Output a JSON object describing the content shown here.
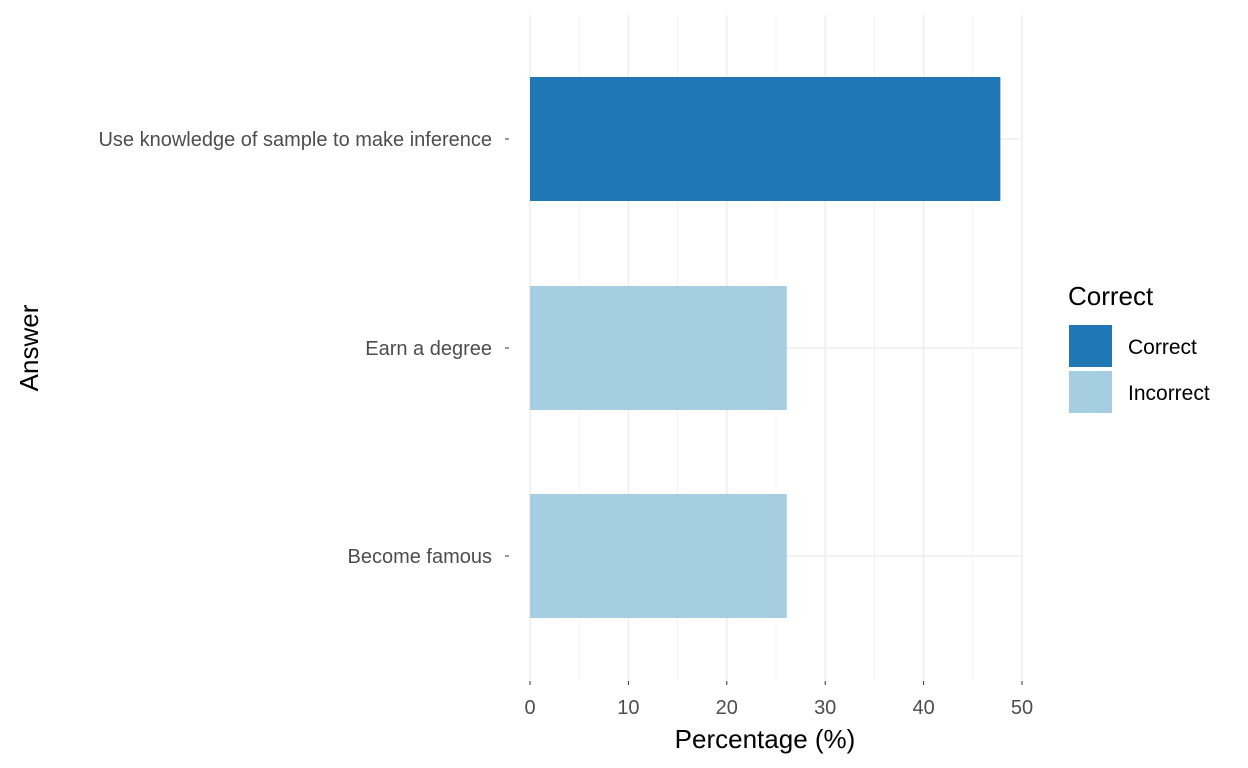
{
  "chart_data": {
    "type": "bar",
    "orientation": "horizontal",
    "title": "",
    "xlabel": "Percentage (%)",
    "ylabel": "Answer",
    "xlim": [
      0,
      52
    ],
    "xticks": [
      0,
      10,
      20,
      30,
      40,
      50
    ],
    "xtick_labels": [
      "0",
      "10",
      "20",
      "30",
      "40",
      "50"
    ],
    "grid": true,
    "categories": [
      "Use knowledge of sample to make inference",
      "Earn a degree",
      "Become famous"
    ],
    "values": [
      47.8,
      26.1,
      26.1
    ],
    "groups": [
      "Correct",
      "Incorrect",
      "Incorrect"
    ],
    "legend": {
      "title": "Correct",
      "position": "right",
      "entries": [
        {
          "label": "Correct",
          "color": "#1f78b4"
        },
        {
          "label": "Incorrect",
          "color": "#a6cee3"
        }
      ]
    }
  }
}
